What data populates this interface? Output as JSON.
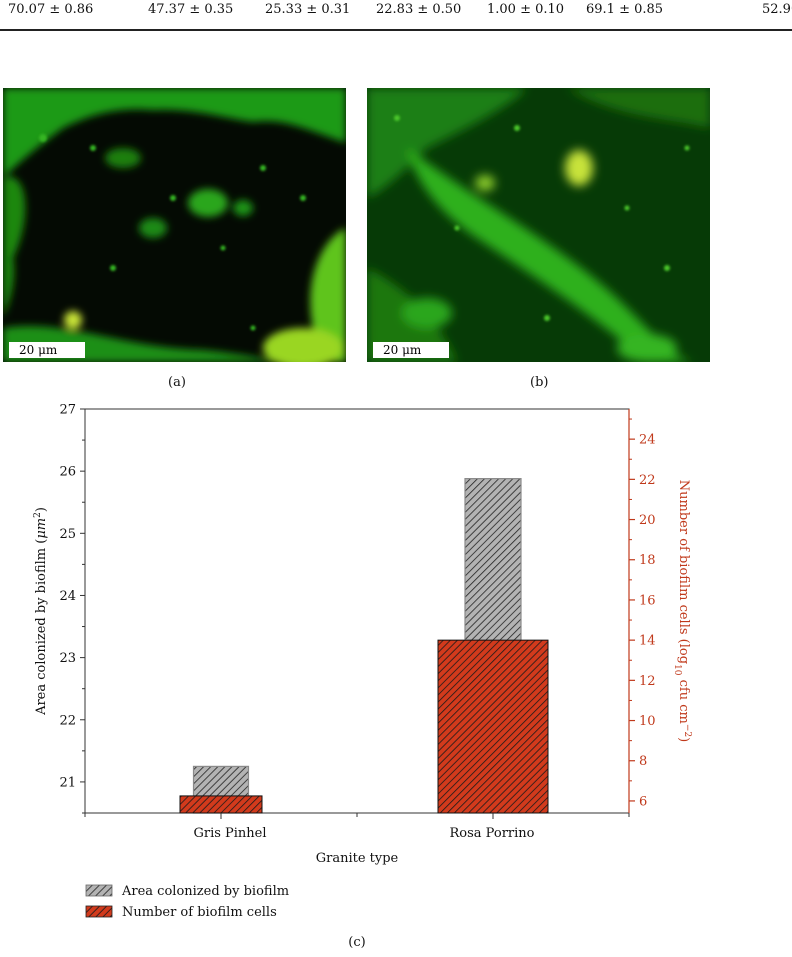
{
  "table_row": [
    "70.07 ± 0.86",
    "47.37 ± 0.35",
    "25.33 ± 0.31",
    "22.83 ± 0.50",
    "1.00 ± 0.10",
    "69.1 ± 0.85",
    "52.90"
  ],
  "panels": {
    "a": {
      "caption": "(a)",
      "scale": "20 μm"
    },
    "b": {
      "caption": "(b)",
      "scale": "20 μm"
    },
    "c": {
      "caption": "(c)"
    }
  },
  "chart_data": {
    "type": "bar",
    "categories": [
      "Gris Pinhel",
      "Rosa Porrino"
    ],
    "xlabel": "Granite type",
    "left_axis": {
      "label_parts": [
        "Area colonized by biofilm (",
        "μm",
        "2",
        ")"
      ],
      "ylim": [
        20.5,
        27
      ],
      "ticks": [
        21,
        22,
        23,
        24,
        25,
        26,
        27
      ]
    },
    "right_axis": {
      "label_parts": [
        "Number of biofilm cells (log",
        "10",
        " cfu cm",
        "−2",
        ")"
      ],
      "ylim": [
        5.4,
        25.5
      ],
      "ticks": [
        6,
        8,
        10,
        12,
        14,
        16,
        18,
        20,
        22,
        24
      ]
    },
    "series": [
      {
        "name": "Area colonized by biofilm",
        "axis": "left",
        "values": [
          21.25,
          25.88
        ]
      },
      {
        "name": "Number of biofilm cells",
        "axis": "right",
        "values": [
          6.25,
          14.0
        ]
      }
    ],
    "colors": {
      "area": "#a8a8a8",
      "cells": "#c8321a",
      "right_axis": "#c0391b"
    }
  }
}
